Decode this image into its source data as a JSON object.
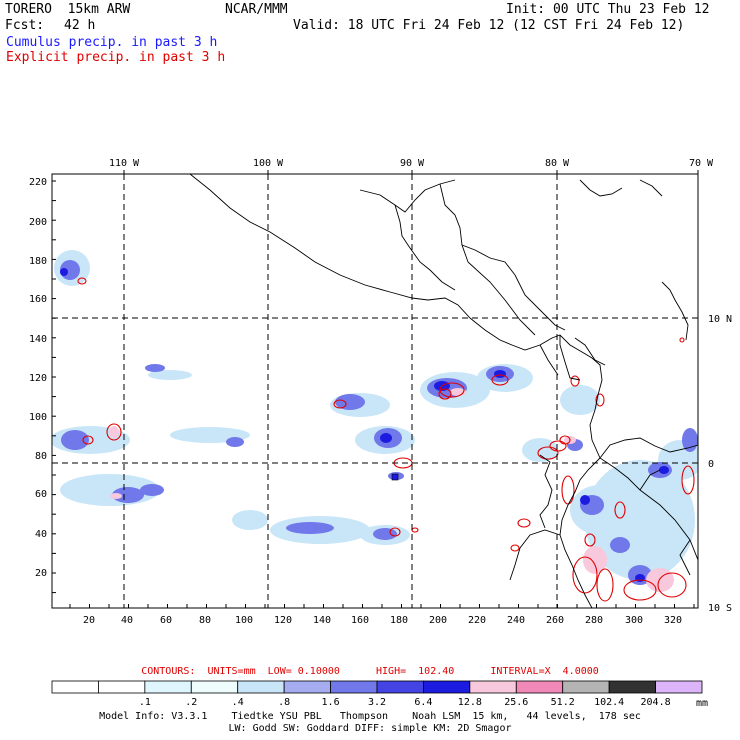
{
  "header": {
    "model": "TORERO  15km ARW",
    "center": "NCAR/MMM",
    "init": "Init: 00 UTC Thu 23 Feb 12",
    "fcst_label": "Fcst:",
    "fcst_value": "42 h",
    "valid": "Valid: 18 UTC Fri 24 Feb 12 (12 CST Fri 24 Feb 12)",
    "field_cumulus": "Cumulus precip. in past 3 h",
    "field_explicit": "Explicit precip. in past 3 h"
  },
  "axes": {
    "top_lon_labels": [
      "110 W",
      "100 W",
      "90 W",
      "80 W",
      "70 W"
    ],
    "right_lat_labels": [
      "10 N",
      "0",
      "10 S"
    ],
    "left_ticks": [
      "220",
      "200",
      "180",
      "160",
      "140",
      "120",
      "100",
      "80",
      "60",
      "40",
      "20"
    ],
    "bottom_ticks": [
      "20",
      "40",
      "60",
      "80",
      "100",
      "120",
      "140",
      "160",
      "180",
      "200",
      "220",
      "240",
      "260",
      "280",
      "300",
      "320"
    ]
  },
  "colorbar": {
    "title": "CONTOURS:  UNITS=mm  LOW= 0.10000      HIGH=  102.40      INTERVAL=X  4.0000",
    "labels": [
      ".1",
      ".2",
      ".4",
      ".8",
      "1.6",
      "3.2",
      "6.4",
      "12.8",
      "25.6",
      "51.2",
      "102.4",
      "204.8"
    ],
    "unit": "mm",
    "colors": [
      "#ffffff",
      "#ffffff",
      "#e0f6ff",
      "#eefcfc",
      "#c8e6f8",
      "#a6acf0",
      "#7078ea",
      "#4444e4",
      "#1c1ce0",
      "#f8c8dc",
      "#f088b8",
      "#b4b4b4",
      "#323232",
      "#dcb4fa"
    ]
  },
  "footer": {
    "line1": "Model Info: V3.3.1    Tiedtke YSU PBL   Thompson    Noah LSM  15 km,   44 levels,  178 sec",
    "line2": "LW: Godd SW: Goddard DIFF: simple KM: 2D Smagor"
  }
}
